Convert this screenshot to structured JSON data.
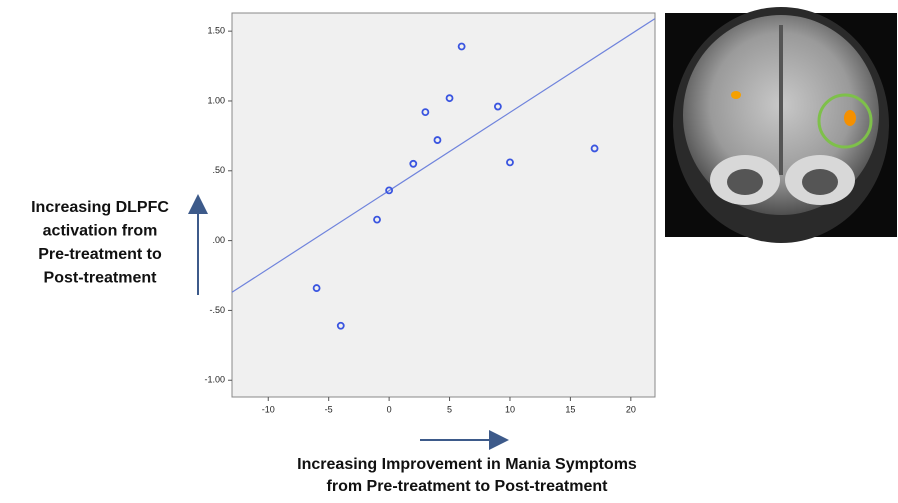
{
  "chart_data": {
    "type": "scatter",
    "x": [
      -6,
      -4,
      -1,
      0,
      2,
      3,
      4,
      5,
      6,
      9,
      10,
      17
    ],
    "series": [
      {
        "color": "#3a55e0",
        "values": [
          -0.34,
          -0.61,
          0.15,
          0.36,
          0.55,
          0.92,
          0.72,
          1.02,
          1.39,
          0.96,
          0.56,
          0.66
        ]
      }
    ],
    "fit_line": {
      "color": "#6f83dc",
      "x": [
        -13,
        22
      ],
      "y": [
        -0.37,
        1.59
      ]
    },
    "xlim": [
      -13,
      22
    ],
    "ylim": [
      -1.12,
      1.63
    ],
    "xticks": [
      -10,
      -5,
      0,
      5,
      10,
      15,
      20
    ],
    "yticks": [
      {
        "value": 1.5,
        "label": "1.50"
      },
      {
        "value": 1.0,
        "label": "1.00"
      },
      {
        "value": 0.5,
        "label": ".50"
      },
      {
        "value": 0,
        "label": ".00"
      },
      {
        "value": -0.5,
        "label": "-.50"
      },
      {
        "value": -1.0,
        "label": "-1.00"
      }
    ],
    "y_label_lines": [
      "Increasing DLPFC",
      "activation from",
      "Pre-treatment to",
      "Post-treatment"
    ],
    "x_label_lines": [
      "Increasing Improvement in Mania Symptoms",
      "from Pre-treatment to Post-treatment"
    ]
  }
}
